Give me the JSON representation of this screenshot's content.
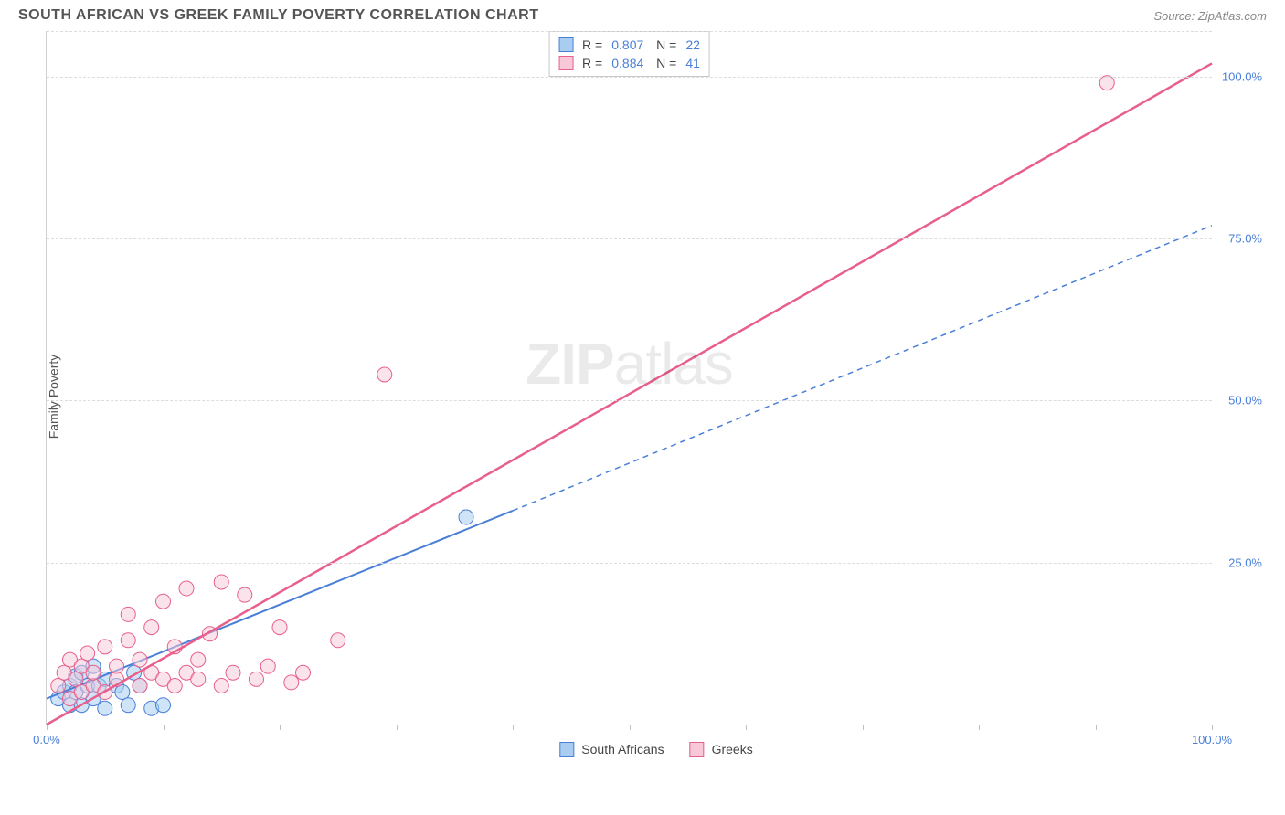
{
  "header": {
    "title": "SOUTH AFRICAN VS GREEK FAMILY POVERTY CORRELATION CHART",
    "source_label": "Source: ",
    "source_name": "ZipAtlas.com"
  },
  "chart": {
    "type": "scatter",
    "ylabel": "Family Poverty",
    "xlim": [
      0,
      100
    ],
    "ylim": [
      0,
      107
    ],
    "xtick_positions": [
      0,
      10,
      20,
      30,
      40,
      50,
      60,
      70,
      80,
      90,
      100
    ],
    "xtick_labels": {
      "0": "0.0%",
      "100": "100.0%"
    },
    "yticks": [
      {
        "value": 25,
        "label": "25.0%"
      },
      {
        "value": 50,
        "label": "50.0%"
      },
      {
        "value": 75,
        "label": "75.0%"
      },
      {
        "value": 100,
        "label": "100.0%"
      }
    ],
    "grid_color": "#dcdcdc",
    "axis_color": "#d0d0d0",
    "tick_label_color": "#4a7fd8",
    "background_color": "#ffffff",
    "watermark": "ZIPatlas",
    "series": [
      {
        "key": "south_africans",
        "label": "South Africans",
        "fill": "#a8cdf0",
        "stroke": "#4a7fd8",
        "fill_opacity": 0.55,
        "marker_r": 8,
        "R": "0.807",
        "N": "22",
        "points": [
          [
            1,
            4
          ],
          [
            1.5,
            5
          ],
          [
            2,
            3
          ],
          [
            2,
            6
          ],
          [
            2.5,
            7.5
          ],
          [
            2.5,
            5
          ],
          [
            3,
            3
          ],
          [
            3,
            8
          ],
          [
            3.5,
            6
          ],
          [
            4,
            4
          ],
          [
            4,
            9
          ],
          [
            4.5,
            6
          ],
          [
            5,
            7
          ],
          [
            5,
            2.5
          ],
          [
            6,
            6
          ],
          [
            6.5,
            5
          ],
          [
            7,
            3
          ],
          [
            7.5,
            8
          ],
          [
            8,
            6
          ],
          [
            9,
            2.5
          ],
          [
            10,
            3
          ],
          [
            36,
            32
          ]
        ],
        "trend": {
          "x1": 0,
          "y1": 4,
          "x2": 40,
          "y2": 33,
          "stroke_width": 2,
          "dash": "none"
        },
        "trend_ext": {
          "x1": 40,
          "y1": 33,
          "x2": 100,
          "y2": 77,
          "stroke_width": 1.5,
          "dash": "6,5"
        }
      },
      {
        "key": "greeks",
        "label": "Greeks",
        "fill": "#f8c8d8",
        "stroke": "#e85f8b",
        "fill_opacity": 0.5,
        "marker_r": 8,
        "R": "0.884",
        "N": "41",
        "points": [
          [
            1,
            6
          ],
          [
            1.5,
            8
          ],
          [
            2,
            4
          ],
          [
            2,
            10
          ],
          [
            2.5,
            7
          ],
          [
            3,
            5
          ],
          [
            3,
            9
          ],
          [
            3.5,
            11
          ],
          [
            4,
            6
          ],
          [
            4,
            8
          ],
          [
            5,
            12
          ],
          [
            5,
            5
          ],
          [
            6,
            9
          ],
          [
            6,
            7
          ],
          [
            7,
            13
          ],
          [
            7,
            17
          ],
          [
            8,
            6
          ],
          [
            8,
            10
          ],
          [
            9,
            8
          ],
          [
            9,
            15
          ],
          [
            10,
            7
          ],
          [
            10,
            19
          ],
          [
            11,
            6
          ],
          [
            11,
            12
          ],
          [
            12,
            8
          ],
          [
            12,
            21
          ],
          [
            13,
            7
          ],
          [
            13,
            10
          ],
          [
            14,
            14
          ],
          [
            15,
            6
          ],
          [
            15,
            22
          ],
          [
            16,
            8
          ],
          [
            17,
            20
          ],
          [
            18,
            7
          ],
          [
            19,
            9
          ],
          [
            20,
            15
          ],
          [
            21,
            6.5
          ],
          [
            22,
            8
          ],
          [
            25,
            13
          ],
          [
            29,
            54
          ],
          [
            91,
            99
          ]
        ],
        "trend": {
          "x1": 0,
          "y1": 0,
          "x2": 100,
          "y2": 102,
          "stroke_width": 2.5,
          "dash": "none"
        }
      }
    ]
  }
}
